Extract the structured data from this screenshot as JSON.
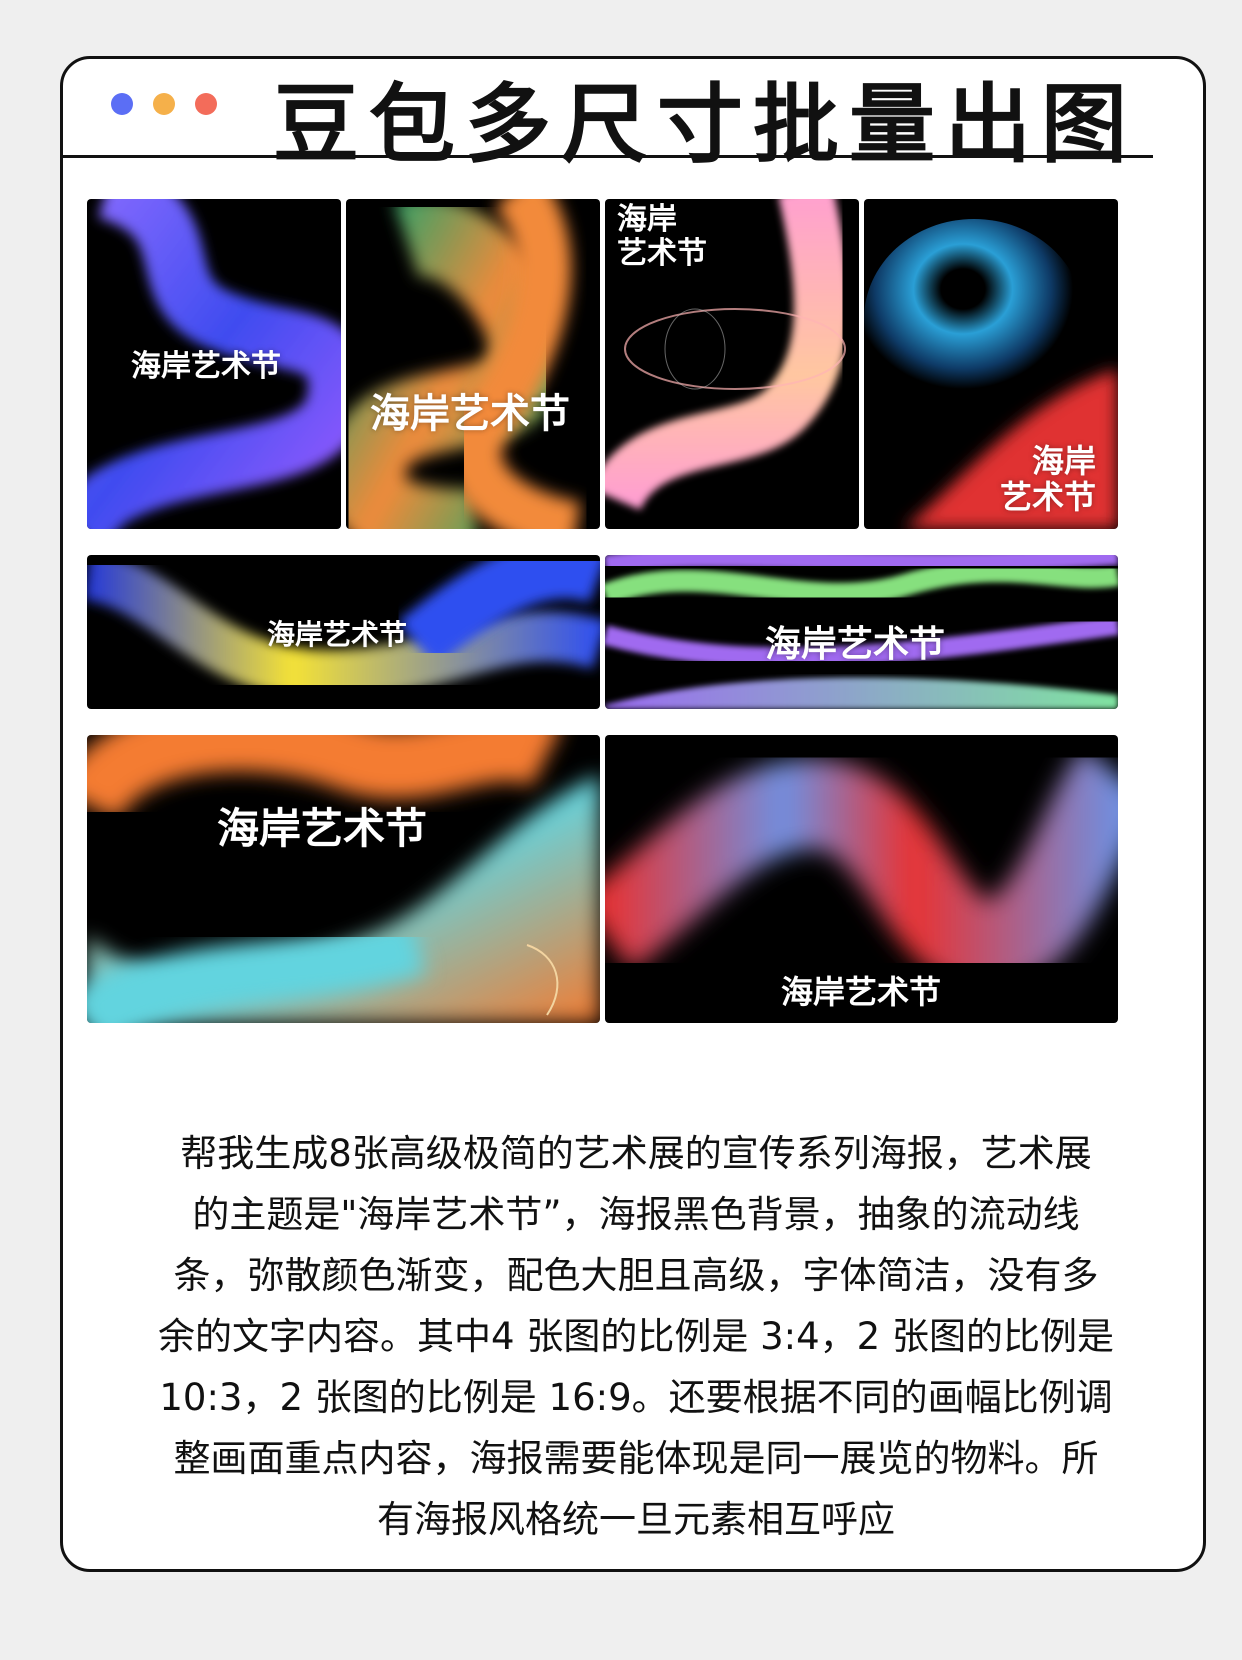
{
  "header": {
    "title": "豆包多尺寸批量出图",
    "dots": [
      "#5b6ef5",
      "#f5b04a",
      "#f36c5a"
    ]
  },
  "posters": [
    {
      "label": "海岸艺术节"
    },
    {
      "label": "海岸艺术节"
    },
    {
      "label_line1": "海岸",
      "label_line2": "艺术节"
    },
    {
      "label_line1": "海岸",
      "label_line2": "艺术节"
    },
    {
      "label": "海岸艺术节"
    },
    {
      "label": "海岸艺术节"
    },
    {
      "label": "海岸艺术节"
    },
    {
      "label": "海岸艺术节"
    }
  ],
  "description": {
    "lines": [
      "帮我生成8张高级极简的艺术展的宣传系列海报，艺术展",
      "的主题是\"海岸艺术节”，海报黑色背景，抽象的流动线",
      "条，弥散颜色渐变，配色大胆且高级，字体简洁，没有多",
      "余的文字内容。其中4 张图的比例是 3:4，2 张图的比例是",
      "10:3，2 张图的比例是 16:9。还要根据不同的画幅比例调",
      "整画面重点内容，海报需要能体现是同一展览的物料。所",
      "有海报风格统一旦元素相互呼应"
    ]
  }
}
